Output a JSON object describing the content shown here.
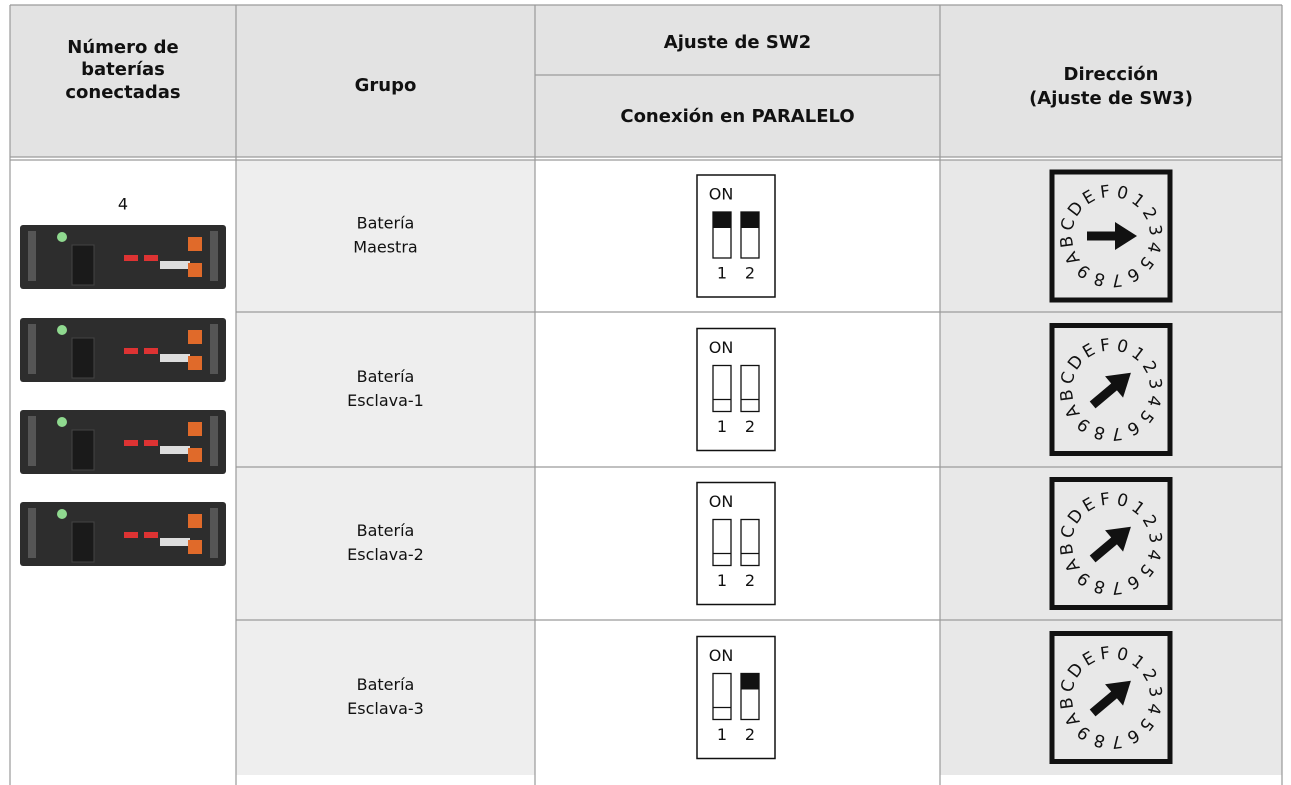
{
  "header": {
    "batteries": [
      "Número de",
      "baterías",
      "conectadas"
    ],
    "group": "Grupo",
    "sw2": "Ajuste de SW2",
    "connection": "Conexión en PARALELO",
    "address": [
      "Dirección",
      "(Ajuste de SW3)"
    ]
  },
  "battery_count": 4,
  "switch_labels": {
    "on": "ON",
    "positions": [
      "1",
      "2"
    ]
  },
  "dial_labels": [
    "0",
    "1",
    "2",
    "3",
    "4",
    "5",
    "6",
    "7",
    "8",
    "9",
    "A",
    "B",
    "C",
    "D",
    "E",
    "F"
  ],
  "rows": [
    {
      "group": [
        "Batería",
        "Maestra"
      ]
    },
    {
      "group": [
        "Batería",
        "Esclava-1"
      ]
    },
    {
      "group": [
        "Batería",
        "Esclava-2"
      ]
    },
    {
      "group": [
        "Batería",
        "Esclava-3"
      ]
    }
  ]
}
